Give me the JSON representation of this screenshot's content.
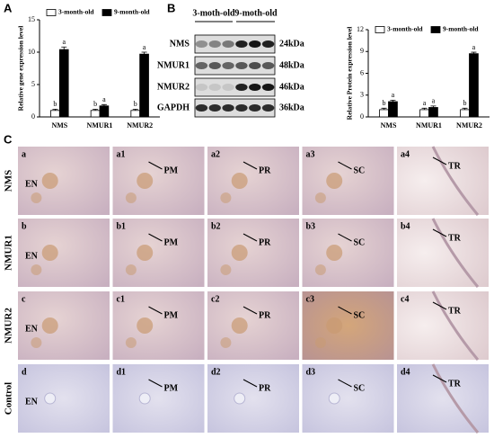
{
  "figure": {
    "panel_labels": [
      "A",
      "B",
      "C"
    ]
  },
  "chart_data": [
    {
      "type": "bar",
      "ylabel": "Relative gene expression level",
      "categories": [
        "NMS",
        "NMUR1",
        "NMUR2"
      ],
      "series": [
        {
          "name": "3-month-old",
          "color": "#ffffff",
          "values": [
            1,
            1,
            1
          ],
          "errors": [
            0.2,
            0.2,
            0.2
          ],
          "letters": [
            "b",
            "b",
            "b"
          ]
        },
        {
          "name": "9-month-old",
          "color": "#000000",
          "values": [
            10.4,
            1.7,
            9.7
          ],
          "errors": [
            0.4,
            0.2,
            0.3
          ],
          "letters": [
            "a",
            "a",
            "a"
          ]
        }
      ],
      "ylim": [
        0,
        15
      ],
      "yticks": [
        0,
        5,
        10,
        15
      ]
    },
    {
      "type": "bar",
      "ylabel": "Relative Protein expression level",
      "categories": [
        "NMS",
        "NMUR1",
        "NMUR2"
      ],
      "series": [
        {
          "name": "3-month-old",
          "color": "#ffffff",
          "values": [
            1,
            1,
            1
          ],
          "errors": [
            0.2,
            0.2,
            0.2
          ],
          "letters": [
            "b",
            "a",
            "b"
          ]
        },
        {
          "name": "9-month-old",
          "color": "#000000",
          "values": [
            2.1,
            1.3,
            8.7
          ],
          "errors": [
            0.2,
            0.2,
            0.2
          ],
          "letters": [
            "a",
            "a",
            "a"
          ]
        }
      ],
      "ylim": [
        0,
        12
      ],
      "yticks": [
        0,
        3,
        6,
        9,
        12
      ]
    }
  ],
  "blot": {
    "groups": [
      "3-moth-old",
      "9-moth-old"
    ],
    "rows": [
      {
        "name": "NMS",
        "size": "24kDa"
      },
      {
        "name": "NMUR1",
        "size": "48kDa"
      },
      {
        "name": "NMUR2",
        "size": "46kDa"
      },
      {
        "name": "GAPDH",
        "size": "36kDa"
      }
    ]
  },
  "histology": {
    "rows": [
      {
        "label": "NMS",
        "cells": [
          {
            "tag": "a",
            "marker": "EN"
          },
          {
            "tag": "a1",
            "marker": "PM"
          },
          {
            "tag": "a2",
            "marker": "PR"
          },
          {
            "tag": "a3",
            "marker": "SC"
          },
          {
            "tag": "a4",
            "marker": "TR"
          }
        ]
      },
      {
        "label": "NMUR1",
        "cells": [
          {
            "tag": "b",
            "marker": "EN"
          },
          {
            "tag": "b1",
            "marker": "PM"
          },
          {
            "tag": "b2",
            "marker": "PR"
          },
          {
            "tag": "b3",
            "marker": "SC"
          },
          {
            "tag": "b4",
            "marker": "TR"
          }
        ]
      },
      {
        "label": "NMUR2",
        "cells": [
          {
            "tag": "c",
            "marker": "EN"
          },
          {
            "tag": "c1",
            "marker": "PM"
          },
          {
            "tag": "c2",
            "marker": "PR"
          },
          {
            "tag": "c3",
            "marker": "SC"
          },
          {
            "tag": "c4",
            "marker": "TR"
          }
        ]
      },
      {
        "label": "Control",
        "cells": [
          {
            "tag": "d",
            "marker": "EN"
          },
          {
            "tag": "d1",
            "marker": "PM"
          },
          {
            "tag": "d2",
            "marker": "PR"
          },
          {
            "tag": "d3",
            "marker": "SC"
          },
          {
            "tag": "d4",
            "marker": "TR"
          }
        ]
      }
    ]
  }
}
